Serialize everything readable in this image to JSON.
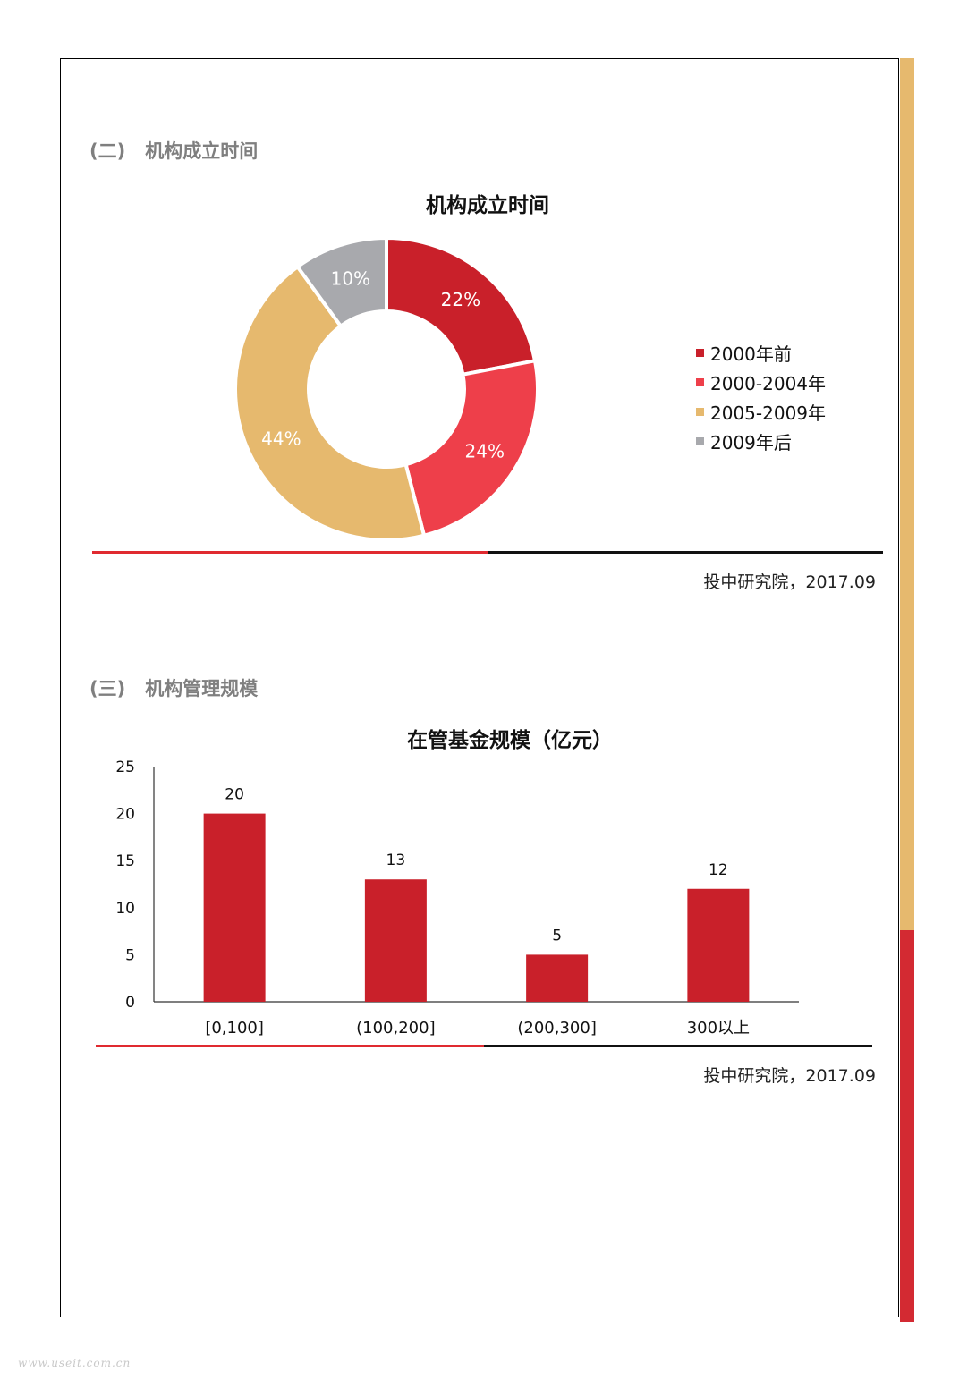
{
  "section2": {
    "number": "(二)",
    "title": "机构成立时间",
    "chart_title": "机构成立时间",
    "source": "投中研究院，2017.09"
  },
  "section3": {
    "number": "(三)",
    "title": "机构管理规模",
    "chart_title": "在管基金规模（亿元）",
    "source": "投中研究院，2017.09"
  },
  "colors": {
    "dark_red": "#c9202a",
    "light_red": "#ee3f4a",
    "gold": "#e6b96e",
    "gray": "#a8a9ad",
    "side_gold": "#e6b96e",
    "side_red": "#d32a32"
  },
  "watermark": "www.useit.com.cn",
  "chart_data": [
    {
      "type": "pie",
      "donut": true,
      "title": "机构成立时间",
      "legend_position": "right",
      "slices": [
        {
          "label": "2000年前",
          "value": 22,
          "display": "22%",
          "color": "#c9202a"
        },
        {
          "label": "2000-2004年",
          "value": 24,
          "display": "24%",
          "color": "#ee3f4a"
        },
        {
          "label": "2005-2009年",
          "value": 44,
          "display": "44%",
          "color": "#e6b96e"
        },
        {
          "label": "2009年后",
          "value": 10,
          "display": "10%",
          "color": "#a8a9ad"
        }
      ]
    },
    {
      "type": "bar",
      "title": "在管基金规模（亿元）",
      "categories": [
        "[0,100]",
        "(100,200]",
        "(200,300]",
        "300以上"
      ],
      "values": [
        20,
        13,
        5,
        12
      ],
      "ylim": [
        0,
        25
      ],
      "yticks": [
        0,
        5,
        10,
        15,
        20,
        25
      ],
      "xlabel": "",
      "ylabel": "",
      "grid": false,
      "color": "#c9202a"
    }
  ]
}
